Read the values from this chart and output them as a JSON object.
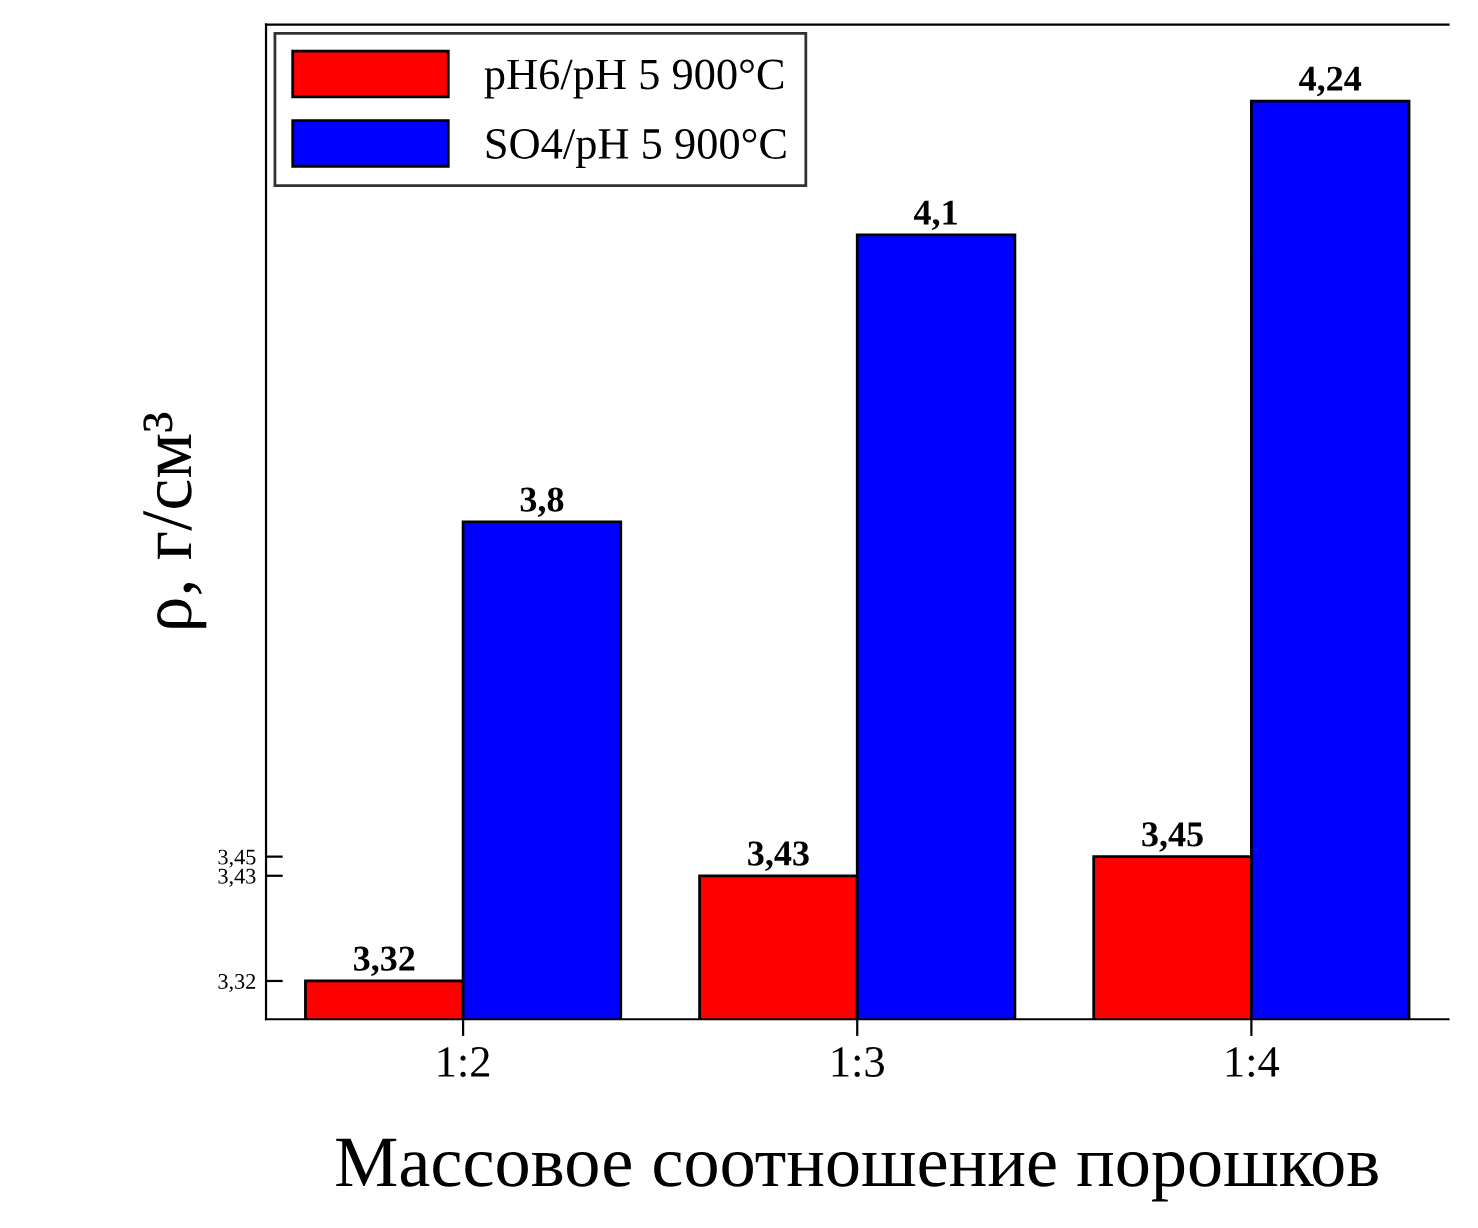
{
  "chart_data": {
    "type": "bar",
    "categories": [
      "1:2",
      "1:3",
      "1:4"
    ],
    "series": [
      {
        "name": "pH6/pH 5 900°C",
        "color": "#ff0000",
        "values": [
          3.32,
          3.43,
          3.45
        ],
        "value_labels": [
          "3,32",
          "3,43",
          "3,45"
        ]
      },
      {
        "name": "SO4/pH 5 900°C",
        "color": "#0000ff",
        "values": [
          3.8,
          4.1,
          4.24
        ],
        "value_labels": [
          "3,8",
          "4,1",
          "4,24"
        ]
      }
    ],
    "xlabel": "Массовое соотношение порошков",
    "ylabel": "ρ, г/см³",
    "ylim": [
      3.28,
      4.32
    ],
    "yticks": [
      {
        "value": 3.32,
        "label": "3,32"
      },
      {
        "value": 3.43,
        "label": "3,43"
      },
      {
        "value": 3.45,
        "label": "3,45"
      }
    ],
    "legend": "top left",
    "grid": false
  }
}
